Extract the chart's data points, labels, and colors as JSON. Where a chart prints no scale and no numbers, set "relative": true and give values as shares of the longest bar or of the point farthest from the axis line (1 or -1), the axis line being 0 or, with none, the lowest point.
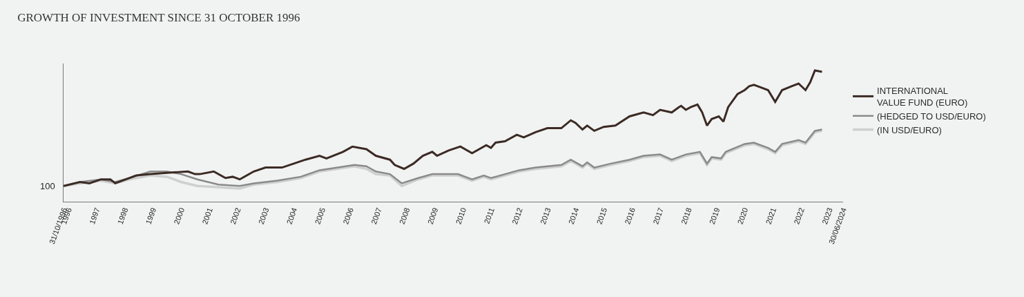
{
  "chart_data": {
    "type": "line",
    "title": "GROWTH OF INVESTMENT SINCE 31 OCTOBER 1996",
    "relative": true,
    "grid": false,
    "legend": "right",
    "marker": "none",
    "line_style": "solid",
    "xlim": [
      "1996-10-31",
      "2024-06-30"
    ],
    "xticks": [
      {
        "value": "1996-10-31",
        "label": "31/10/1996"
      },
      {
        "value": "1996-12-31",
        "label": "1996"
      },
      {
        "value": "1997-12-31",
        "label": "1997"
      },
      {
        "value": "1998-12-31",
        "label": "1998"
      },
      {
        "value": "1999-12-31",
        "label": "1999"
      },
      {
        "value": "2000-12-31",
        "label": "2000"
      },
      {
        "value": "2001-12-31",
        "label": "2001"
      },
      {
        "value": "2002-12-31",
        "label": "2002"
      },
      {
        "value": "2003-12-31",
        "label": "2003"
      },
      {
        "value": "2004-12-31",
        "label": "2004"
      },
      {
        "value": "2005-12-31",
        "label": "2005"
      },
      {
        "value": "2006-12-31",
        "label": "2006"
      },
      {
        "value": "2007-12-31",
        "label": "2007"
      },
      {
        "value": "2008-12-31",
        "label": "2008"
      },
      {
        "value": "2009-12-31",
        "label": "2009"
      },
      {
        "value": "2010-12-31",
        "label": "2010"
      },
      {
        "value": "2011-12-31",
        "label": "2011"
      },
      {
        "value": "2012-12-31",
        "label": "2012"
      },
      {
        "value": "2013-12-31",
        "label": "2013"
      },
      {
        "value": "2014-12-31",
        "label": "2014"
      },
      {
        "value": "2015-12-31",
        "label": "2015"
      },
      {
        "value": "2016-12-31",
        "label": "2016"
      },
      {
        "value": "2017-12-31",
        "label": "2017"
      },
      {
        "value": "2018-12-31",
        "label": "2018"
      },
      {
        "value": "2019-12-31",
        "label": "2019"
      },
      {
        "value": "2020-12-31",
        "label": "2020"
      },
      {
        "value": "2021-12-31",
        "label": "2021"
      },
      {
        "value": "2022-12-31",
        "label": "2022"
      },
      {
        "value": "2023-12-31",
        "label": "2023"
      },
      {
        "value": "2024-06-30",
        "label": "30/06/2024"
      }
    ],
    "annotations": [
      {
        "text": "100",
        "x": "1996-11",
        "y": 0.12
      }
    ],
    "series": [
      {
        "name": "INTERNATIONAL VALUE FUND (EURO)",
        "color": "#3b2a24",
        "x": [
          "1996-11",
          "1997-06",
          "1997-10",
          "1998-03",
          "1998-07",
          "1998-09",
          "1999-03",
          "1999-06",
          "1999-12",
          "2000-07",
          "2001-04",
          "2001-07",
          "2001-09",
          "2002-03",
          "2002-08",
          "2002-11",
          "2003-02",
          "2003-08",
          "2004-01",
          "2004-08",
          "2005-01",
          "2005-06",
          "2005-12",
          "2006-03",
          "2006-10",
          "2007-02",
          "2007-08",
          "2007-12",
          "2008-06",
          "2008-08",
          "2008-12",
          "2009-04",
          "2009-08",
          "2009-12",
          "2010-02",
          "2010-07",
          "2010-12",
          "2011-05",
          "2011-11",
          "2012-01",
          "2012-03",
          "2012-07",
          "2012-12",
          "2013-03",
          "2013-08",
          "2014-01",
          "2014-07",
          "2014-11",
          "2015-01",
          "2015-04",
          "2015-06",
          "2015-09",
          "2016-01",
          "2016-06",
          "2016-12",
          "2017-06",
          "2017-10",
          "2018-01",
          "2018-06",
          "2018-09",
          "2018-10",
          "2018-12",
          "2019-02",
          "2019-05",
          "2019-07",
          "2019-09",
          "2019-11",
          "2020-02",
          "2020-04",
          "2020-06",
          "2020-10",
          "2021-01",
          "2021-03",
          "2021-05",
          "2021-08",
          "2021-11",
          "2022-02",
          "2022-05",
          "2022-09",
          "2022-12",
          "2023-03",
          "2023-05",
          "2023-07",
          "2023-10"
        ],
        "values": [
          0.12,
          0.15,
          0.14,
          0.17,
          0.17,
          0.14,
          0.18,
          0.2,
          0.21,
          0.22,
          0.23,
          0.21,
          0.21,
          0.23,
          0.18,
          0.19,
          0.17,
          0.23,
          0.26,
          0.26,
          0.29,
          0.32,
          0.35,
          0.33,
          0.38,
          0.42,
          0.4,
          0.35,
          0.32,
          0.28,
          0.25,
          0.29,
          0.35,
          0.38,
          0.35,
          0.39,
          0.42,
          0.37,
          0.43,
          0.41,
          0.45,
          0.46,
          0.51,
          0.49,
          0.53,
          0.56,
          0.56,
          0.62,
          0.6,
          0.55,
          0.58,
          0.54,
          0.57,
          0.58,
          0.65,
          0.68,
          0.66,
          0.7,
          0.68,
          0.72,
          0.73,
          0.7,
          0.72,
          0.74,
          0.68,
          0.58,
          0.63,
          0.65,
          0.61,
          0.72,
          0.82,
          0.85,
          0.88,
          0.89,
          0.87,
          0.85,
          0.76,
          0.85,
          0.88,
          0.9,
          0.85,
          0.91,
          1.0,
          0.99
        ]
      },
      {
        "name": "(HEDGED TO USD/EURO)",
        "color": "#8a8a8a",
        "x": [
          "1996-11",
          "1997-06",
          "1998-03",
          "1998-09",
          "1999-03",
          "1999-12",
          "2000-07",
          "2001-01",
          "2001-08",
          "2002-05",
          "2003-02",
          "2003-08",
          "2004-06",
          "2005-04",
          "2005-12",
          "2007-03",
          "2007-08",
          "2007-12",
          "2008-06",
          "2008-11",
          "2009-06",
          "2009-12",
          "2010-11",
          "2011-05",
          "2011-10",
          "2012-01",
          "2012-07",
          "2013-01",
          "2013-08",
          "2014-07",
          "2014-11",
          "2015-04",
          "2015-06",
          "2015-09",
          "2016-04",
          "2016-12",
          "2017-06",
          "2018-01",
          "2018-06",
          "2018-12",
          "2019-06",
          "2019-09",
          "2019-11",
          "2020-03",
          "2020-05",
          "2021-01",
          "2021-05",
          "2021-11",
          "2022-02",
          "2022-05",
          "2022-12",
          "2023-03",
          "2023-07",
          "2023-10"
        ],
        "values": [
          0.12,
          0.15,
          0.17,
          0.15,
          0.18,
          0.23,
          0.23,
          0.21,
          0.17,
          0.13,
          0.12,
          0.14,
          0.16,
          0.19,
          0.24,
          0.28,
          0.27,
          0.23,
          0.21,
          0.14,
          0.18,
          0.21,
          0.21,
          0.17,
          0.2,
          0.18,
          0.21,
          0.24,
          0.26,
          0.28,
          0.32,
          0.27,
          0.3,
          0.26,
          0.29,
          0.32,
          0.35,
          0.36,
          0.32,
          0.36,
          0.38,
          0.29,
          0.34,
          0.33,
          0.38,
          0.44,
          0.45,
          0.41,
          0.38,
          0.44,
          0.47,
          0.45,
          0.54,
          0.55
        ]
      },
      {
        "name": "(IN USD/EURO)",
        "color": "#cfcfcf",
        "x": [
          "1996-11",
          "1997-06",
          "1998-03",
          "1998-09",
          "1999-03",
          "1999-12",
          "2000-07",
          "2001-01",
          "2001-08",
          "2002-05",
          "2003-02",
          "2003-08",
          "2004-06",
          "2005-04",
          "2005-12",
          "2007-03",
          "2007-08",
          "2007-12",
          "2008-06",
          "2008-11",
          "2009-06",
          "2009-12",
          "2010-11",
          "2011-05",
          "2011-10",
          "2012-01",
          "2012-07",
          "2013-01",
          "2013-08",
          "2014-07",
          "2014-11",
          "2015-04",
          "2015-06",
          "2015-09",
          "2016-04",
          "2016-12",
          "2017-06",
          "2018-01",
          "2018-06",
          "2018-12",
          "2019-06",
          "2019-09",
          "2019-11",
          "2020-03",
          "2020-05",
          "2021-01",
          "2021-05",
          "2021-11",
          "2022-02",
          "2022-05",
          "2022-12",
          "2023-03",
          "2023-07",
          "2023-10"
        ],
        "values": [
          0.12,
          0.14,
          0.16,
          0.14,
          0.17,
          0.2,
          0.19,
          0.15,
          0.12,
          0.11,
          0.1,
          0.13,
          0.15,
          0.18,
          0.23,
          0.27,
          0.25,
          0.21,
          0.2,
          0.12,
          0.17,
          0.2,
          0.2,
          0.16,
          0.19,
          0.17,
          0.2,
          0.23,
          0.25,
          0.27,
          0.31,
          0.26,
          0.29,
          0.25,
          0.28,
          0.31,
          0.34,
          0.35,
          0.31,
          0.35,
          0.37,
          0.28,
          0.33,
          0.32,
          0.37,
          0.43,
          0.44,
          0.4,
          0.37,
          0.43,
          0.46,
          0.44,
          0.53,
          0.54
        ]
      }
    ]
  }
}
